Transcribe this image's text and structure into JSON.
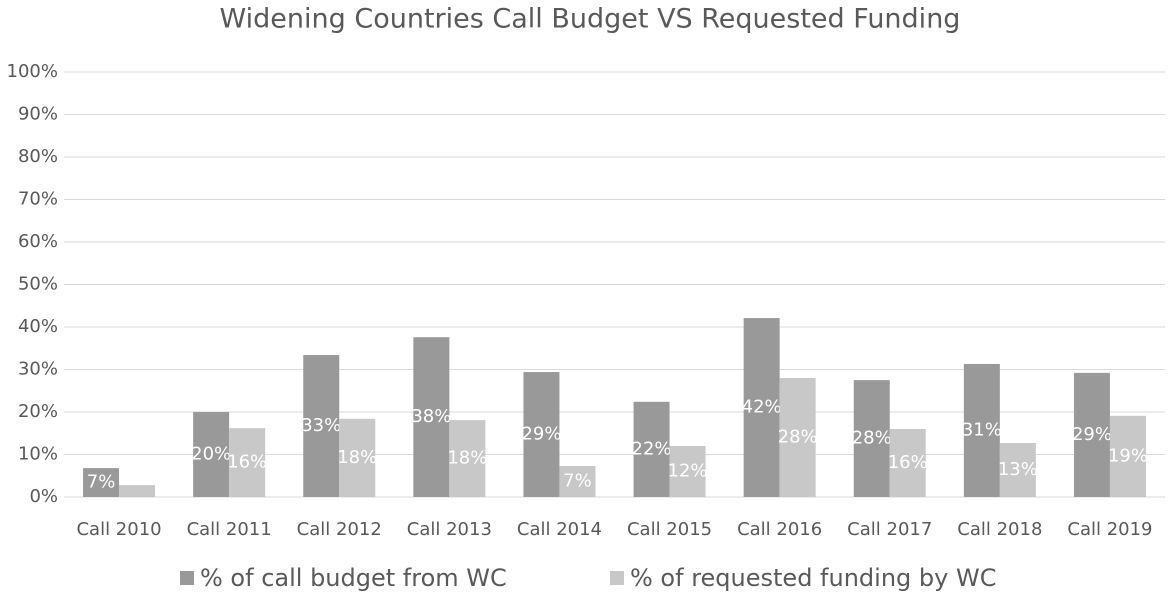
{
  "chart_data": {
    "type": "bar",
    "title": "Widening Countries Call Budget VS Requested Funding",
    "categories": [
      "Call 2010",
      "Call 2011",
      "Call 2012",
      "Call 2013",
      "Call 2014",
      "Call 2015",
      "Call 2016",
      "Call 2017",
      "Call 2018",
      "Call 2019"
    ],
    "series": [
      {
        "name": "% of call budget from WC",
        "color": "#999999",
        "values": [
          6.8,
          20,
          33.4,
          37.6,
          29.4,
          22.4,
          42.1,
          27.5,
          31.3,
          29.2
        ],
        "value_labels": [
          "7%",
          "20%",
          "33%",
          "38%",
          "29%",
          "22%",
          "42%",
          "28%",
          "31%",
          "29%"
        ]
      },
      {
        "name": "% of requested funding by WC",
        "color": "#c8c8c8",
        "values": [
          2.8,
          16.2,
          18.4,
          18.1,
          7.3,
          12,
          28,
          16,
          12.7,
          19.1
        ],
        "value_labels": [
          null,
          "16%",
          "18%",
          "18%",
          "7%",
          "12%",
          "28%",
          "16%",
          "13%",
          "19%"
        ]
      }
    ],
    "ylim": [
      0,
      100
    ],
    "yticks": [
      {
        "value": 0,
        "label": "0%"
      },
      {
        "value": 10,
        "label": "10%"
      },
      {
        "value": 20,
        "label": "20%"
      },
      {
        "value": 30,
        "label": "30%"
      },
      {
        "value": 40,
        "label": "40%"
      },
      {
        "value": 50,
        "label": "50%"
      },
      {
        "value": 60,
        "label": "60%"
      },
      {
        "value": 70,
        "label": "70%"
      },
      {
        "value": 80,
        "label": "80%"
      },
      {
        "value": 90,
        "label": "90%"
      },
      {
        "value": 100,
        "label": "100%"
      }
    ],
    "grid": true,
    "legend": "bottom"
  }
}
